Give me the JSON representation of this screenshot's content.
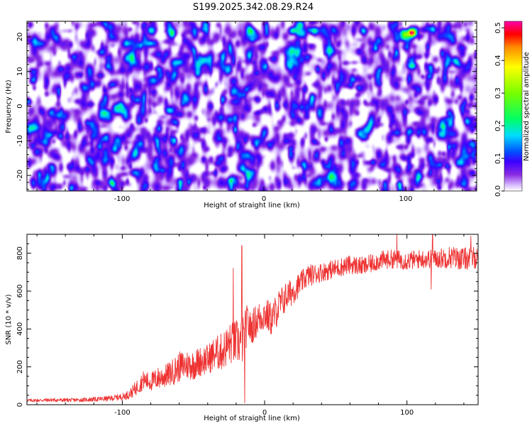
{
  "title": "S199.2025.342.08.29.R24",
  "chart_data": [
    {
      "type": "heatmap",
      "xlabel": "Height of straight line (km)",
      "ylabel": "Frequency (Hz)",
      "xlim": [
        -167,
        150
      ],
      "ylim": [
        -24.5,
        24.5
      ],
      "x_ticks": [
        -100,
        0,
        100
      ],
      "x_tick_labels": [
        "-100",
        "0",
        "100"
      ],
      "y_ticks": [
        -20,
        -10,
        0,
        10,
        20
      ],
      "y_tick_labels": [
        "-20",
        "-10",
        "0",
        "10",
        "20"
      ],
      "colorbar": {
        "label": "Normalized spectral amplitude",
        "range": [
          0,
          0.52
        ],
        "ticks": [
          0.0,
          0.1,
          0.2,
          0.3,
          0.4,
          0.5
        ],
        "tick_labels": [
          "0.0",
          "0.1",
          "0.2",
          "0.3",
          "0.4",
          "0.5"
        ],
        "colormap": [
          "#ffffff",
          "#cc99ff",
          "#8a2be2",
          "#0000ff",
          "#00ffff",
          "#00ff00",
          "#ffff00",
          "#ff8000",
          "#ff0000",
          "#ff00aa"
        ]
      },
      "typical_amplitude_range": [
        0.0,
        0.08
      ],
      "hotspots": [
        {
          "x": 20,
          "y": 22,
          "amplitude": 0.22
        },
        {
          "x": 35,
          "y": 22,
          "amplitude": 0.17
        },
        {
          "x": 104,
          "y": 21.5,
          "amplitude": 0.38
        },
        {
          "x": 98,
          "y": 21.5,
          "amplitude": 0.15
        },
        {
          "x": -65,
          "y": 21.5,
          "amplitude": 0.13
        },
        {
          "x": -80,
          "y": 22,
          "amplitude": 0.12
        },
        {
          "x": -10,
          "y": 22,
          "amplitude": 0.12
        },
        {
          "x": 70,
          "y": 22,
          "amplitude": 0.11
        },
        {
          "x": -92,
          "y": -19,
          "amplitude": 0.11
        },
        {
          "x": -5,
          "y": 20,
          "amplitude": 0.09
        }
      ]
    },
    {
      "type": "line",
      "xlabel": "Height of straight line (km)",
      "ylabel": "SNR (10 * v/v)",
      "xlim": [
        -167,
        150
      ],
      "ylim": [
        0,
        900
      ],
      "x_ticks": [
        -100,
        0,
        100
      ],
      "x_tick_labels": [
        "-100",
        "0",
        "100"
      ],
      "y_ticks": [
        0,
        200,
        400,
        600,
        800
      ],
      "y_tick_labels": [
        "0",
        "200",
        "400",
        "600",
        "800"
      ],
      "series": [
        {
          "name": "SNR",
          "color": "#ee3333",
          "x": [
            -167,
            -150,
            -140,
            -130,
            -120,
            -110,
            -100,
            -95,
            -90,
            -85,
            -80,
            -75,
            -70,
            -65,
            -60,
            -55,
            -50,
            -45,
            -40,
            -35,
            -30,
            -25,
            -20,
            -18,
            -15,
            -12,
            -10,
            -5,
            0,
            5,
            10,
            15,
            20,
            25,
            30,
            40,
            50,
            60,
            70,
            80,
            90,
            100,
            110,
            120,
            130,
            140,
            150
          ],
          "values": [
            22,
            25,
            24,
            25,
            28,
            32,
            42,
            55,
            90,
            130,
            120,
            140,
            150,
            170,
            200,
            210,
            210,
            230,
            240,
            270,
            280,
            320,
            330,
            330,
            340,
            440,
            400,
            450,
            480,
            450,
            520,
            570,
            600,
            640,
            680,
            700,
            720,
            740,
            730,
            760,
            770,
            760,
            770,
            770,
            780,
            770,
            780
          ],
          "noise_amplitude": [
            8,
            10,
            10,
            10,
            12,
            14,
            18,
            25,
            40,
            50,
            50,
            60,
            60,
            70,
            80,
            80,
            80,
            80,
            80,
            90,
            100,
            110,
            120,
            120,
            130,
            100,
            90,
            90,
            90,
            90,
            90,
            80,
            70,
            60,
            60,
            50,
            50,
            50,
            50,
            50,
            50,
            50,
            50,
            50,
            60,
            60,
            60
          ],
          "spikes": [
            {
              "x": -16,
              "y": 840
            },
            {
              "x": -22,
              "y": 720
            },
            {
              "x": -14,
              "y": 10
            },
            {
              "x": 118,
              "y": 900
            },
            {
              "x": 117,
              "y": 610
            },
            {
              "x": 145,
              "y": 890
            },
            {
              "x": 93,
              "y": 900
            }
          ]
        }
      ]
    }
  ]
}
